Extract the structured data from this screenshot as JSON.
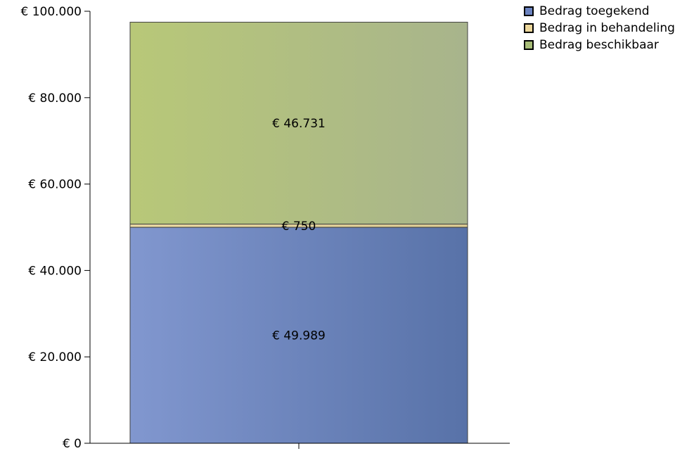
{
  "chart_data": {
    "type": "bar",
    "stacked": true,
    "categories": [
      ""
    ],
    "ylim": [
      0,
      100000
    ],
    "y_ticks": [
      {
        "value": 0,
        "label": "€ 0"
      },
      {
        "value": 20000,
        "label": "€ 20.000"
      },
      {
        "value": 40000,
        "label": "€ 40.000"
      },
      {
        "value": 60000,
        "label": "€ 60.000"
      },
      {
        "value": 80000,
        "label": "€ 80.000"
      },
      {
        "value": 100000,
        "label": "€ 100.000"
      }
    ],
    "series": [
      {
        "name": "Bedrag toegekend",
        "values": [
          49989
        ],
        "label": "€ 49.989",
        "color_left": "#8197cf",
        "color_right": "#5872a8",
        "swatch": "#6b83c0"
      },
      {
        "name": "Bedrag in behandeling",
        "values": [
          750
        ],
        "label": "€ 750",
        "color_left": "#e8d7a0",
        "color_right": "#d8c890",
        "swatch": "#ecd79b"
      },
      {
        "name": "Bedrag beschikbaar",
        "values": [
          46731
        ],
        "label": "€ 46.731",
        "color_left": "#b8c878",
        "color_right": "#a8b48c",
        "swatch": "#a8bd78"
      }
    ],
    "grid": false,
    "legend_position": "top-right"
  }
}
